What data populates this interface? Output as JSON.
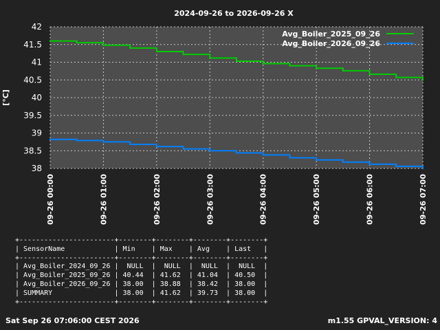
{
  "chart_data": {
    "type": "line",
    "title": "2024-09-26 to 2026-09-26 X",
    "ylabel": "[°C]",
    "ylim": [
      38,
      42
    ],
    "yticks": [
      "38",
      "38.5",
      "39",
      "39.5",
      "40",
      "40.5",
      "41",
      "41.5",
      "42"
    ],
    "xticks": [
      "09-26 00:00",
      "09-26 01:00",
      "09-26 02:00",
      "09-26 03:00",
      "09-26 04:00",
      "09-26 05:00",
      "09-26 06:00",
      "09-26 07:00"
    ],
    "xlim_hours": [
      0,
      7
    ],
    "grid": true,
    "legend_position": "top-right",
    "series": [
      {
        "name": "Avg_Boiler_2025_09_26",
        "color": "#00cc00",
        "x": [
          0,
          0.5,
          1,
          1.5,
          2,
          2.5,
          3,
          3.5,
          4,
          4.5,
          5,
          5.5,
          6,
          6.5,
          7
        ],
        "values": [
          41.6,
          41.55,
          41.48,
          41.4,
          41.3,
          41.22,
          41.12,
          41.03,
          40.96,
          40.9,
          40.83,
          40.76,
          40.66,
          40.57,
          40.5
        ]
      },
      {
        "name": "Avg_Boiler_2026_09_26",
        "color": "#0080ff",
        "x": [
          0,
          0.5,
          1,
          1.5,
          2,
          2.5,
          3,
          3.5,
          4,
          4.5,
          5,
          5.5,
          6,
          6.5,
          7
        ],
        "values": [
          38.82,
          38.79,
          38.75,
          38.68,
          38.62,
          38.55,
          38.5,
          38.44,
          38.38,
          38.3,
          38.24,
          38.18,
          38.12,
          38.06,
          38.0
        ]
      }
    ]
  },
  "stats_table": {
    "lines": [
      "+-----------------------+--------+--------+--------+--------+",
      "| SensorName            | Min    | Max    | Avg    | Last   |",
      "+-----------------------+--------+--------+--------+--------+",
      "| Avg_Boiler_2024_09_26 |  NULL  |  NULL  |  NULL  |  NULL  |",
      "| Avg_Boiler_2025_09_26 | 40.44  | 41.62  | 41.04  | 40.50  |",
      "| Avg_Boiler_2026_09_26 | 38.00  | 38.88  | 38.42  | 38.00  |",
      "| SUMMARY               | 38.00  | 41.62  | 39.73  | 38.00  |",
      "+-----------------------+--------+--------+--------+--------+"
    ]
  },
  "footer": {
    "left": "Sat Sep 26 07:06:00 CEST 2026",
    "right": "m1.55 GPVAL_VERSION: 4"
  }
}
